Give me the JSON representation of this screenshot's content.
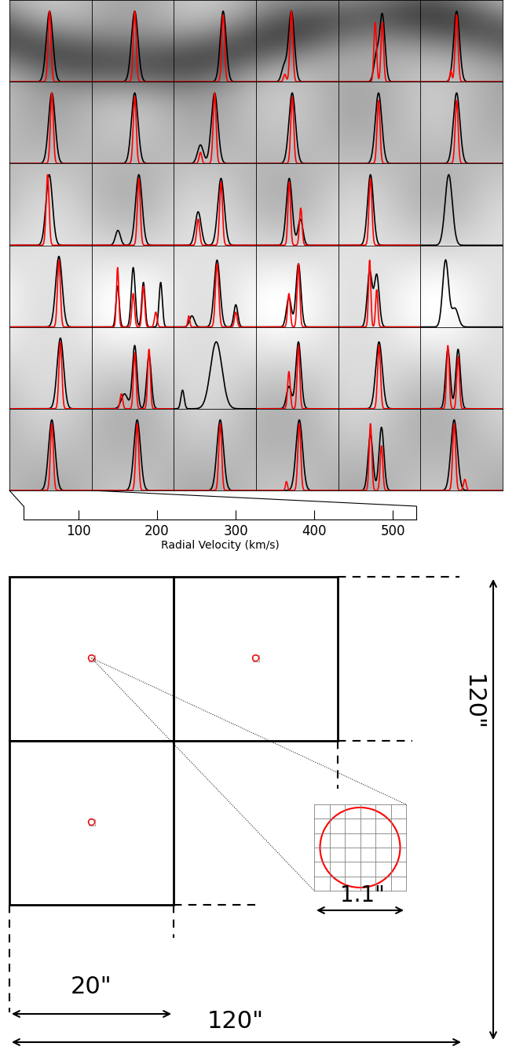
{
  "chart_data": {
    "type": "spectra_grid",
    "rows": 6,
    "cols": 6,
    "colors": [
      "#000000",
      "#ff0000"
    ],
    "xlabel": "Radial Velocity (km/s)",
    "xlim": [
      30,
      530
    ],
    "ylim": [
      0,
      1.1
    ],
    "xticks": [
      100,
      200,
      300,
      400,
      500
    ],
    "panels": [
      [
        [
          [
            274,
            0.95,
            20
          ]
        ],
        [
          [
            274,
            0.95,
            9
          ]
        ]
      ],
      [
        [
          [
            292,
            0.95,
            20
          ]
        ],
        [
          [
            292,
            0.95,
            9
          ]
        ]
      ],
      [
        [
          [
            330,
            0.95,
            18
          ]
        ],
        [
          [
            330,
            0.9,
            9
          ]
        ]
      ],
      [
        [
          [
            245,
            0.95,
            18
          ],
          [
            200,
            0.2,
            15
          ]
        ],
        [
          [
            245,
            0.95,
            9
          ],
          [
            205,
            0.1,
            8
          ]
        ]
      ],
      [
        [
          [
            298,
            0.9,
            16
          ],
          [
            262,
            0.35,
            15
          ]
        ],
        [
          [
            255,
            0.8,
            8
          ],
          [
            298,
            0.8,
            8
          ]
        ]
      ],
      [
        [
          [
            250,
            0.95,
            18
          ]
        ],
        [
          [
            250,
            0.9,
            9
          ],
          [
            215,
            0.15,
            6
          ]
        ]
      ],
      [
        [
          [
            288,
            0.95,
            20
          ]
        ],
        [
          [
            288,
            0.95,
            9
          ]
        ]
      ],
      [
        [
          [
            292,
            0.95,
            20
          ]
        ],
        [
          [
            292,
            0.9,
            9
          ]
        ]
      ],
      [
        [
          [
            278,
            0.95,
            20
          ],
          [
            192,
            0.25,
            18
          ]
        ],
        [
          [
            278,
            0.95,
            9
          ],
          [
            192,
            0.15,
            8
          ]
        ]
      ],
      [
        [
          [
            250,
            0.95,
            20
          ]
        ],
        [
          [
            250,
            0.9,
            9
          ]
        ]
      ],
      [
        [
          [
            275,
            0.95,
            20
          ]
        ],
        [
          [
            275,
            0.85,
            9
          ]
        ]
      ],
      [
        [
          [
            250,
            0.95,
            20
          ]
        ],
        [
          [
            250,
            0.85,
            9
          ]
        ]
      ],
      [
        [
          [
            272,
            0.95,
            20
          ]
        ],
        [
          [
            262,
            0.95,
            9
          ]
        ]
      ],
      [
        [
          [
            317,
            0.95,
            20
          ],
          [
            190,
            0.2,
            15
          ]
        ],
        [
          [
            317,
            0.9,
            9
          ]
        ]
      ],
      [
        [
          [
            317,
            0.9,
            20
          ],
          [
            178,
            0.45,
            18
          ]
        ],
        [
          [
            317,
            0.85,
            9
          ],
          [
            178,
            0.35,
            9
          ]
        ]
      ],
      [
        [
          [
            232,
            0.9,
            18
          ],
          [
            300,
            0.35,
            15
          ]
        ],
        [
          [
            232,
            0.85,
            8
          ],
          [
            302,
            0.5,
            8
          ]
        ]
      ],
      [
        [
          [
            226,
            0.95,
            18
          ]
        ],
        [
          [
            226,
            0.9,
            9
          ]
        ]
      ],
      [
        [
          [
            202,
            0.95,
            22
          ]
        ],
        []
      ],
      [
        [
          [
            331,
            0.95,
            20
          ]
        ],
        [
          [
            331,
            0.9,
            9
          ]
        ]
      ],
      [
        [
          [
            188,
            0.55,
            10
          ],
          [
            283,
            0.8,
            12
          ],
          [
            345,
            0.6,
            10
          ],
          [
            450,
            0.6,
            10
          ]
        ],
        [
          [
            188,
            0.8,
            7
          ],
          [
            283,
            0.45,
            8
          ],
          [
            345,
            0.55,
            8
          ],
          [
            420,
            0.2,
            8
          ]
        ]
      ],
      [
        [
          [
            293,
            0.9,
            18
          ],
          [
            407,
            0.3,
            12
          ],
          [
            140,
            0.15,
            15
          ]
        ],
        [
          [
            293,
            0.85,
            10
          ],
          [
            407,
            0.2,
            8
          ],
          [
            121,
            0.15,
            6
          ]
        ]
      ],
      [
        [
          [
            288,
            0.85,
            15
          ],
          [
            230,
            0.4,
            15
          ]
        ],
        [
          [
            230,
            0.45,
            8
          ],
          [
            288,
            0.85,
            8
          ]
        ]
      ],
      [
        [
          [
            221,
            0.75,
            15
          ],
          [
            264,
            0.7,
            15
          ]
        ],
        [
          [
            221,
            0.9,
            7
          ],
          [
            264,
            0.5,
            7
          ]
        ]
      ],
      [
        [
          [
            183,
            0.9,
            18
          ],
          [
            240,
            0.25,
            20
          ]
        ],
        []
      ],
      [
        [
          [
            340,
            0.95,
            20
          ]
        ],
        [
          [
            340,
            0.9,
            9
          ]
        ]
      ],
      [
        [
          [
            292,
            0.85,
            14
          ],
          [
            379,
            0.72,
            14
          ],
          [
            230,
            0.2,
            20
          ]
        ],
        [
          [
            292,
            0.75,
            8
          ],
          [
            379,
            0.8,
            8
          ],
          [
            211,
            0.2,
            8
          ]
        ]
      ],
      [
        [
          [
            288,
            0.9,
            35
          ],
          [
            83,
            0.25,
            10
          ]
        ],
        []
      ],
      [
        [
          [
            288,
            0.9,
            16
          ],
          [
            230,
            0.3,
            15
          ]
        ],
        [
          [
            230,
            0.5,
            8
          ],
          [
            288,
            0.85,
            8
          ]
        ]
      ],
      [
        [
          [
            278,
            0.9,
            20
          ]
        ],
        [
          [
            278,
            0.85,
            9
          ]
        ]
      ],
      [
        [
          [
            259,
            0.8,
            14
          ],
          [
            197,
            0.8,
            14
          ]
        ],
        [
          [
            197,
            0.85,
            8
          ],
          [
            259,
            0.7,
            8
          ]
        ]
      ],
      [
        [
          [
            288,
            0.95,
            20
          ]
        ],
        [
          [
            288,
            0.9,
            9
          ]
        ]
      ],
      [
        [
          [
            307,
            0.95,
            20
          ]
        ],
        [
          [
            307,
            0.9,
            9
          ]
        ]
      ],
      [
        [
          [
            312,
            0.95,
            20
          ]
        ],
        [
          [
            312,
            0.9,
            9
          ]
        ]
      ],
      [
        [
          [
            293,
            0.95,
            20
          ]
        ],
        [
          [
            293,
            0.9,
            9
          ],
          [
            215,
            0.12,
            6
          ]
        ]
      ],
      [
        [
          [
            226,
            0.75,
            15
          ],
          [
            293,
            0.85,
            15
          ]
        ],
        [
          [
            226,
            0.9,
            8
          ],
          [
            293,
            0.6,
            8
          ]
        ]
      ],
      [
        [
          [
            235,
            0.95,
            20
          ]
        ],
        [
          [
            235,
            0.9,
            9
          ],
          [
            300,
            0.15,
            8
          ]
        ]
      ]
    ]
  },
  "diagram": {
    "box_size": "20\"",
    "field_width": "120\"",
    "field_height": "120\"",
    "fiber_size": "1.1\""
  }
}
